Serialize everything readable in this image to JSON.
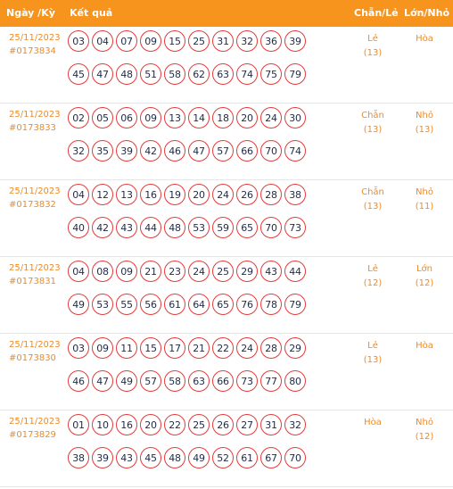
{
  "header": {
    "date_col": "Ngày /Kỳ",
    "result_col": "Kết quả",
    "parity_col": "Chẵn/Lẻ",
    "size_col": "Lớn/Nhỏ"
  },
  "colors": {
    "header_bg": "#f7941d",
    "ball_border": "#e23b3b",
    "accent_text": "#f08a24"
  },
  "rows": [
    {
      "date": "25/11/2023",
      "code": "#0173834",
      "numbers": [
        "03",
        "04",
        "07",
        "09",
        "15",
        "25",
        "31",
        "32",
        "36",
        "39",
        "45",
        "47",
        "48",
        "51",
        "58",
        "62",
        "63",
        "74",
        "75",
        "79"
      ],
      "parity": "Lẻ",
      "parity_count": "(13)",
      "size": "Hòa",
      "size_count": ""
    },
    {
      "date": "25/11/2023",
      "code": "#0173833",
      "numbers": [
        "02",
        "05",
        "06",
        "09",
        "13",
        "14",
        "18",
        "20",
        "24",
        "30",
        "32",
        "35",
        "39",
        "42",
        "46",
        "47",
        "57",
        "66",
        "70",
        "74"
      ],
      "parity": "Chẵn",
      "parity_count": "(13)",
      "size": "Nhỏ",
      "size_count": "(13)"
    },
    {
      "date": "25/11/2023",
      "code": "#0173832",
      "numbers": [
        "04",
        "12",
        "13",
        "16",
        "19",
        "20",
        "24",
        "26",
        "28",
        "38",
        "40",
        "42",
        "43",
        "44",
        "48",
        "53",
        "59",
        "65",
        "70",
        "73"
      ],
      "parity": "Chẵn",
      "parity_count": "(13)",
      "size": "Nhỏ",
      "size_count": "(11)"
    },
    {
      "date": "25/11/2023",
      "code": "#0173831",
      "numbers": [
        "04",
        "08",
        "09",
        "21",
        "23",
        "24",
        "25",
        "29",
        "43",
        "44",
        "49",
        "53",
        "55",
        "56",
        "61",
        "64",
        "65",
        "76",
        "78",
        "79"
      ],
      "parity": "Lẻ",
      "parity_count": "(12)",
      "size": "Lớn",
      "size_count": "(12)"
    },
    {
      "date": "25/11/2023",
      "code": "#0173830",
      "numbers": [
        "03",
        "09",
        "11",
        "15",
        "17",
        "21",
        "22",
        "24",
        "28",
        "29",
        "46",
        "47",
        "49",
        "57",
        "58",
        "63",
        "66",
        "73",
        "77",
        "80"
      ],
      "parity": "Lẻ",
      "parity_count": "(13)",
      "size": "Hòa",
      "size_count": ""
    },
    {
      "date": "25/11/2023",
      "code": "#0173829",
      "numbers": [
        "01",
        "10",
        "16",
        "20",
        "22",
        "25",
        "26",
        "27",
        "31",
        "32",
        "38",
        "39",
        "43",
        "45",
        "48",
        "49",
        "52",
        "61",
        "67",
        "70"
      ],
      "parity": "Hòa",
      "parity_count": "",
      "size": "Nhỏ",
      "size_count": "(12)"
    }
  ]
}
